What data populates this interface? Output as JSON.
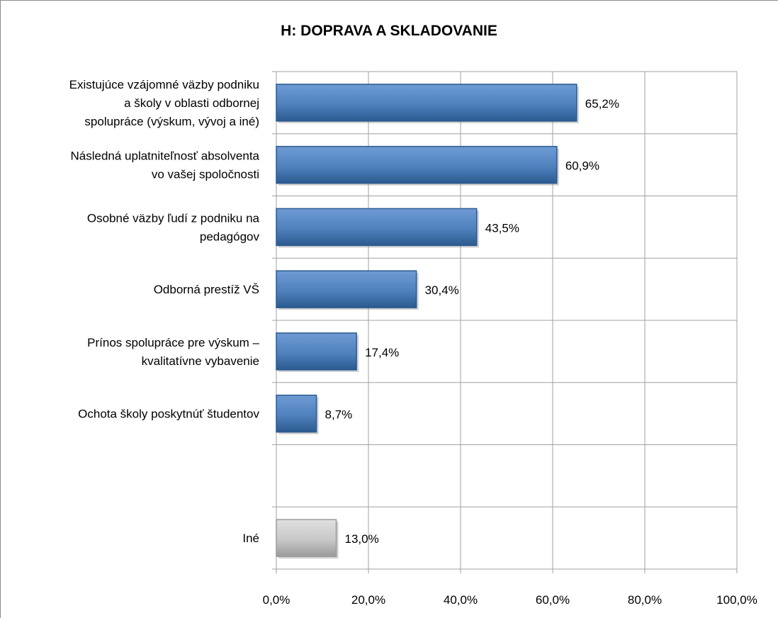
{
  "chart_data": {
    "type": "bar",
    "orientation": "horizontal",
    "title": "H: DOPRAVA A SKLADOVANIE",
    "xlabel": "",
    "ylabel": "",
    "xlim": [
      0,
      100
    ],
    "grid": true,
    "legend": "none",
    "x_ticks": [
      "0,0%",
      "20,0%",
      "40,0%",
      "60,0%",
      "80,0%",
      "100,0%"
    ],
    "tick_values": [
      0,
      20,
      40,
      60,
      80,
      100
    ],
    "categories": [
      [
        "Existujúce vzájomné väzby podniku",
        "a školy v oblasti odbornej",
        "spolupráce (výskum, vývoj a iné)"
      ],
      [
        "Následná uplatniteľnosť absolventa",
        "vo vašej spoločnosti"
      ],
      [
        "Osobné väzby ľudí z podniku na",
        "pedagógov"
      ],
      [
        "Odborná prestíž VŠ"
      ],
      [
        "Prínos spolupráce pre výskum –",
        "kvalitatívne vybavenie"
      ],
      [
        "Ochota školy poskytnúť  študentov"
      ],
      [
        ""
      ],
      [
        "Iné"
      ]
    ],
    "values": [
      65.2,
      60.9,
      43.5,
      30.4,
      17.4,
      8.7,
      null,
      13.0
    ],
    "value_labels": [
      "65,2%",
      "60,9%",
      "43,5%",
      "30,4%",
      "17,4%",
      "8,7%",
      "",
      "13,0%"
    ],
    "colors": {
      "main": "#4f81bd",
      "main_light": "#6f9bd4",
      "main_dark": "#2c5a8f",
      "other": "#c8c8c8",
      "other_light": "#e0e0e0",
      "other_dark": "#9a9a9a",
      "grid": "#a0a0a0"
    }
  }
}
